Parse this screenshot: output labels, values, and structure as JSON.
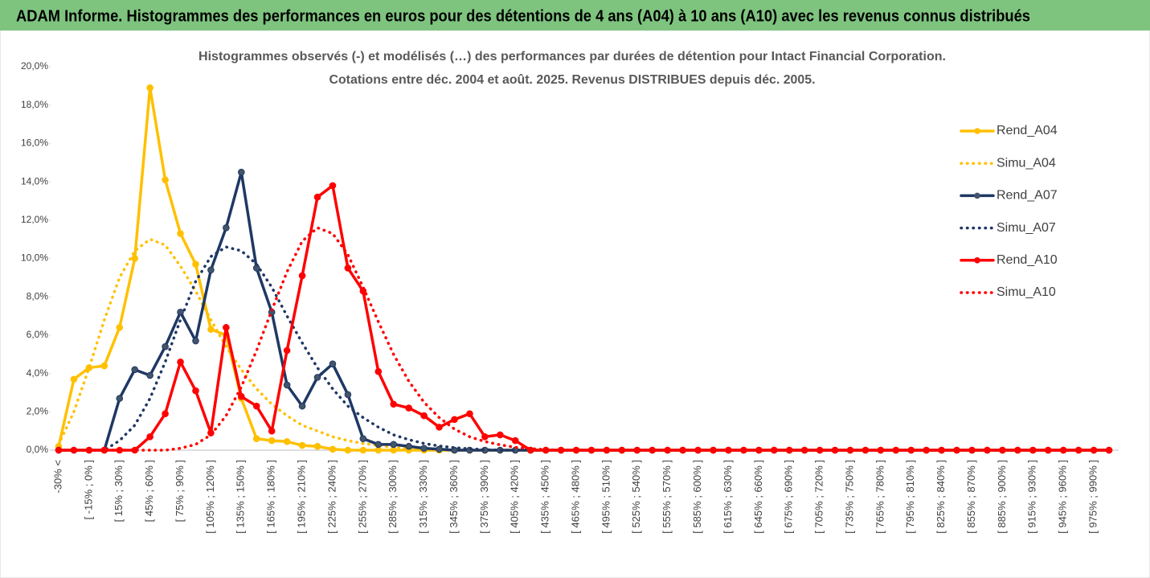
{
  "header": {
    "title": "ADAM Informe. Histogrammes des performances en euros pour des détentions de 4 ans (A04) à 10 ans (A10) avec les revenus connus distribués"
  },
  "chart_data": {
    "type": "line",
    "title": "Histogrammes observés (-) et modélisés (…) des performances par durées de détention pour Intact Financial Corporation.",
    "subtitle": "Cotations entre déc. 2004 et août. 2025.  Revenus DISTRIBUES depuis déc. 2005.",
    "legend": "right",
    "categories": [
      "-30% <",
      null,
      "[ -15% ; 0% ]",
      null,
      "[ 15% ; 30% ]",
      null,
      "[ 45% ; 60% ]",
      null,
      "[ 75% ; 90% ]",
      null,
      "[ 105% ; 120% ]",
      null,
      "[ 135% ; 150% ]",
      null,
      "[ 165% ; 180% ]",
      null,
      "[ 195% ; 210% ]",
      null,
      "[ 225% ; 240% ]",
      null,
      "[ 255% ; 270% ]",
      null,
      "[ 285% ; 300% ]",
      null,
      "[ 315% ; 330% ]",
      null,
      "[ 345% ; 360% ]",
      null,
      "[ 375% ; 390% ]",
      null,
      "[ 405% ; 420% ]",
      null,
      "[ 435% ; 450% ]",
      null,
      "[ 465% ; 480% ]",
      null,
      "[ 495% ; 510% ]",
      null,
      "[ 525% ; 540% ]",
      null,
      "[ 555% ; 570% ]",
      null,
      "[ 585% ; 600% ]",
      null,
      "[ 615% ; 630% ]",
      null,
      "[ 645% ; 660% ]",
      null,
      "[ 675% ; 690% ]",
      null,
      "[ 705% ; 720% ]",
      null,
      "[ 735% ; 750% ]",
      null,
      "[ 765% ; 780% ]",
      null,
      "[ 795% ; 810% ]",
      null,
      "[ 825% ; 840% ]",
      null,
      "[ 855% ; 870% ]",
      null,
      "[ 885% ; 900% ]",
      null,
      "[ 915% ; 930% ]",
      null,
      "[ 945% ; 960% ]",
      null,
      "[ 975% ; 990% ]",
      null
    ],
    "ylim": [
      0,
      20
    ],
    "yticks": [
      {
        "value": 0,
        "label": "0,0%"
      },
      {
        "value": 2,
        "label": "2,0%"
      },
      {
        "value": 4,
        "label": "4,0%"
      },
      {
        "value": 6,
        "label": "6,0%"
      },
      {
        "value": 8,
        "label": "8,0%"
      },
      {
        "value": 10,
        "label": "10,0%"
      },
      {
        "value": 12,
        "label": "12,0%"
      },
      {
        "value": 14,
        "label": "14,0%"
      },
      {
        "value": 16,
        "label": "16,0%"
      },
      {
        "value": 18,
        "label": "18,0%"
      },
      {
        "value": 20,
        "label": "20,0%"
      }
    ],
    "series": [
      {
        "name": "Rend_A04",
        "color": "#ffc000",
        "style": "solid",
        "values": [
          0.2,
          3.7,
          4.3,
          4.4,
          6.4,
          10.0,
          18.9,
          14.1,
          11.3,
          9.7,
          6.3,
          6.0,
          2.7,
          0.6,
          0.5,
          0.45,
          0.25,
          0.2,
          0.05,
          0,
          0,
          0,
          0,
          0,
          0,
          0,
          0,
          0,
          0,
          0,
          0,
          0,
          0,
          0,
          0,
          0,
          0,
          0,
          0,
          0,
          0,
          0,
          0,
          0,
          0,
          0,
          0,
          0,
          0,
          0,
          0,
          0,
          0,
          0,
          0,
          0,
          0,
          0,
          0,
          0,
          0,
          0,
          0,
          0,
          0,
          0,
          0,
          0,
          0,
          0
        ]
      },
      {
        "name": "Simu_A04",
        "color": "#ffc000",
        "style": "dotted",
        "values": [
          0.3,
          2.0,
          4.3,
          6.8,
          9.0,
          10.4,
          11.0,
          10.7,
          9.6,
          8.3,
          6.8,
          5.4,
          4.2,
          3.2,
          2.4,
          1.8,
          1.3,
          1.0,
          0.7,
          0.5,
          0.35,
          0.25,
          0.15,
          0.1,
          0.05,
          0,
          0,
          0,
          0,
          0,
          0,
          0,
          0,
          0,
          0,
          0,
          0,
          0,
          0,
          0,
          0,
          0,
          0,
          0,
          0,
          0,
          0,
          0,
          0,
          0,
          0,
          0,
          0,
          0,
          0,
          0,
          0,
          0,
          0,
          0,
          0,
          0,
          0,
          0,
          0,
          0,
          0,
          0,
          0,
          0
        ]
      },
      {
        "name": "Rend_A07",
        "color": "#1f3864",
        "style": "solid",
        "values": [
          0,
          0,
          0,
          0,
          2.7,
          4.2,
          3.9,
          5.4,
          7.2,
          5.7,
          9.4,
          11.6,
          14.5,
          9.5,
          7.2,
          3.4,
          2.3,
          3.8,
          4.5,
          2.9,
          0.6,
          0.3,
          0.3,
          0.2,
          0.1,
          0.05,
          0,
          0,
          0,
          0,
          0,
          0,
          0,
          0,
          0,
          0,
          0,
          0,
          0,
          0,
          0,
          0,
          0,
          0,
          0,
          0,
          0,
          0,
          0,
          0,
          0,
          0,
          0,
          0,
          0,
          0,
          0,
          0,
          0,
          0,
          0,
          0,
          0,
          0,
          0,
          0,
          0,
          0,
          0,
          0
        ]
      },
      {
        "name": "Simu_A07",
        "color": "#1f3864",
        "style": "dotted",
        "values": [
          0,
          0,
          0,
          0,
          0.5,
          1.3,
          2.7,
          4.6,
          6.8,
          8.8,
          10.1,
          10.6,
          10.4,
          9.7,
          8.5,
          7.0,
          5.6,
          4.3,
          3.2,
          2.3,
          1.7,
          1.2,
          0.8,
          0.55,
          0.35,
          0.22,
          0.13,
          0.07,
          0.03,
          0,
          0,
          0,
          0,
          0,
          0,
          0,
          0,
          0,
          0,
          0,
          0,
          0,
          0,
          0,
          0,
          0,
          0,
          0,
          0,
          0,
          0,
          0,
          0,
          0,
          0,
          0,
          0,
          0,
          0,
          0,
          0,
          0,
          0,
          0,
          0,
          0,
          0,
          0,
          0,
          0
        ]
      },
      {
        "name": "Rend_A10",
        "color": "#ff0000",
        "style": "solid",
        "values": [
          0,
          0,
          0,
          0,
          0,
          0,
          0.7,
          1.9,
          4.6,
          3.1,
          0.9,
          6.4,
          2.8,
          2.3,
          1.0,
          5.2,
          9.1,
          13.2,
          13.8,
          9.5,
          8.3,
          4.1,
          2.4,
          2.2,
          1.8,
          1.2,
          1.6,
          1.9,
          0.7,
          0.8,
          0.5,
          0,
          0,
          0,
          0,
          0,
          0,
          0,
          0,
          0,
          0,
          0,
          0,
          0,
          0,
          0,
          0,
          0,
          0,
          0,
          0,
          0,
          0,
          0,
          0,
          0,
          0,
          0,
          0,
          0,
          0,
          0,
          0,
          0,
          0,
          0,
          0,
          0,
          0,
          0
        ]
      },
      {
        "name": "Simu_A10",
        "color": "#ff0000",
        "style": "dotted",
        "values": [
          0,
          0,
          0,
          0,
          0,
          0,
          0,
          0,
          0.1,
          0.3,
          0.8,
          1.8,
          3.3,
          5.2,
          7.3,
          9.3,
          10.9,
          11.6,
          11.3,
          10.2,
          8.5,
          6.7,
          5.0,
          3.6,
          2.5,
          1.7,
          1.1,
          0.7,
          0.45,
          0.28,
          0.15,
          0.08,
          0.03,
          0,
          0,
          0,
          0,
          0,
          0,
          0,
          0,
          0,
          0,
          0,
          0,
          0,
          0,
          0,
          0,
          0,
          0,
          0,
          0,
          0,
          0,
          0,
          0,
          0,
          0,
          0,
          0,
          0,
          0,
          0,
          0,
          0,
          0,
          0,
          0,
          0
        ]
      }
    ]
  }
}
